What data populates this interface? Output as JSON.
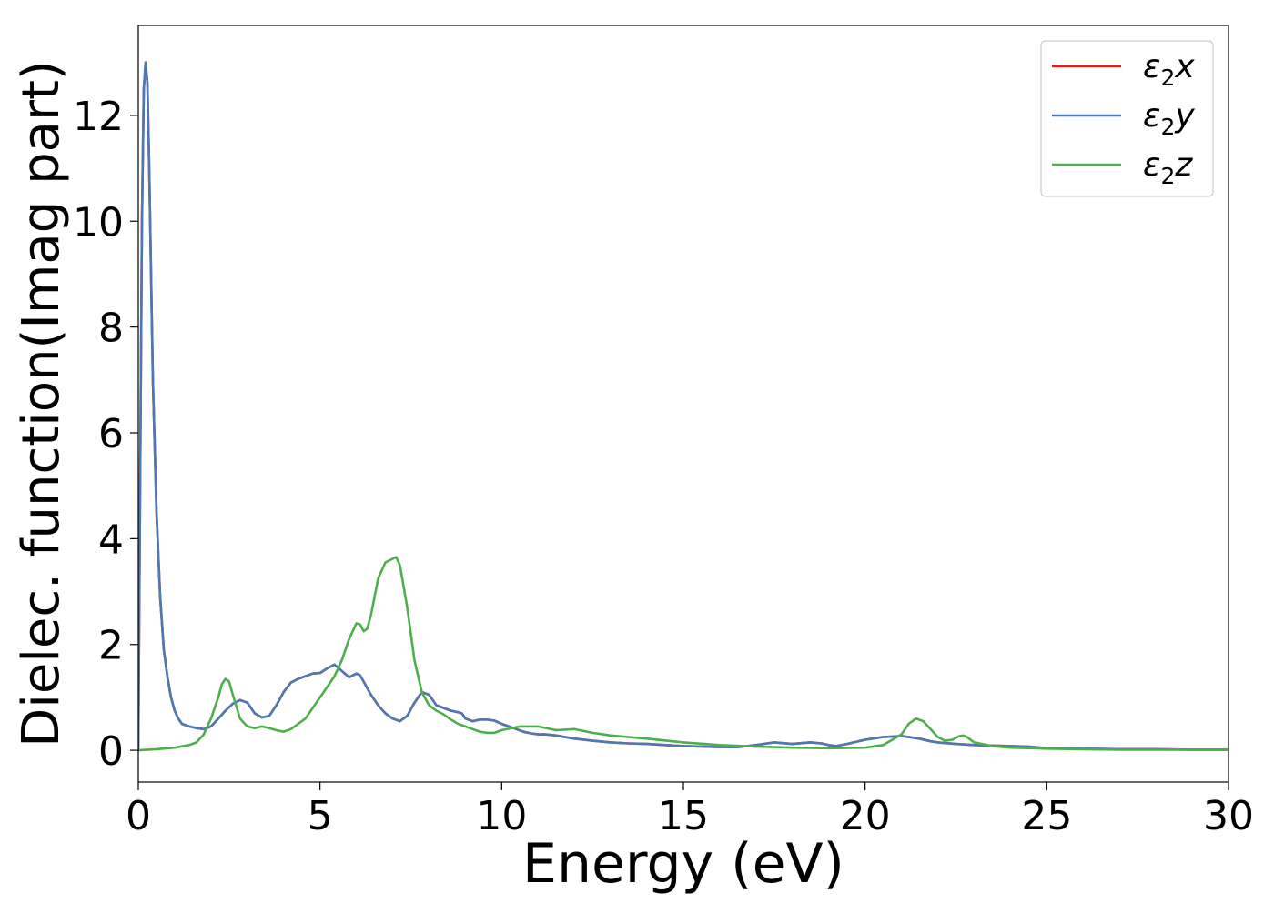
{
  "chart_data": {
    "type": "line",
    "title": "",
    "xlabel": "Energy (eV)",
    "ylabel": "Dielec. function(Imag part)",
    "xlim": [
      0,
      30
    ],
    "ylim": [
      -0.6,
      13.7
    ],
    "xticks": [
      0,
      5,
      10,
      15,
      20,
      25,
      30
    ],
    "yticks": [
      0,
      2,
      4,
      6,
      8,
      10,
      12
    ],
    "grid": false,
    "legend_position": "top-right",
    "series": [
      {
        "name": "ε₂x",
        "legend_base": "ε",
        "legend_sub": "2",
        "legend_suffix": "x",
        "color": "#e41a1c",
        "x": [
          0,
          0.05,
          0.1,
          0.15,
          0.2,
          0.25,
          0.3,
          0.35,
          0.4,
          0.5,
          0.6,
          0.7,
          0.8,
          0.9,
          1.0,
          1.1,
          1.2,
          1.4,
          1.6,
          1.8,
          2.0,
          2.2,
          2.4,
          2.6,
          2.8,
          3.0,
          3.1,
          3.2,
          3.4,
          3.6,
          3.8,
          4.0,
          4.2,
          4.4,
          4.6,
          4.8,
          5.0,
          5.2,
          5.4,
          5.6,
          5.8,
          6.0,
          6.1,
          6.2,
          6.4,
          6.6,
          6.8,
          7.0,
          7.2,
          7.4,
          7.6,
          7.8,
          8.0,
          8.2,
          8.4,
          8.6,
          8.8,
          8.9,
          9.0,
          9.2,
          9.4,
          9.6,
          9.8,
          10.0,
          10.2,
          10.4,
          10.6,
          10.8,
          11.0,
          11.2,
          11.5,
          12.0,
          12.5,
          13.0,
          13.5,
          14.0,
          14.5,
          15.0,
          15.5,
          16.0,
          16.5,
          17.0,
          17.5,
          18.0,
          18.5,
          18.8,
          19.0,
          19.2,
          19.5,
          20.0,
          20.5,
          21.0,
          21.5,
          21.8,
          22.0,
          22.5,
          23.0,
          23.5,
          24.0,
          24.5,
          25.0,
          26.0,
          27.0,
          28.0,
          29.0,
          30.0
        ],
        "y": [
          0,
          5.0,
          10.0,
          12.5,
          13.0,
          12.6,
          11.0,
          9.0,
          7.0,
          4.5,
          2.9,
          1.9,
          1.4,
          1.0,
          0.75,
          0.6,
          0.5,
          0.45,
          0.42,
          0.4,
          0.45,
          0.6,
          0.75,
          0.88,
          0.95,
          0.9,
          0.8,
          0.7,
          0.62,
          0.65,
          0.85,
          1.1,
          1.28,
          1.35,
          1.4,
          1.45,
          1.46,
          1.55,
          1.62,
          1.5,
          1.38,
          1.45,
          1.42,
          1.3,
          1.05,
          0.85,
          0.7,
          0.6,
          0.55,
          0.65,
          0.9,
          1.1,
          1.05,
          0.85,
          0.8,
          0.75,
          0.72,
          0.7,
          0.6,
          0.55,
          0.58,
          0.58,
          0.56,
          0.5,
          0.45,
          0.4,
          0.35,
          0.32,
          0.3,
          0.3,
          0.28,
          0.22,
          0.18,
          0.15,
          0.13,
          0.12,
          0.1,
          0.08,
          0.07,
          0.06,
          0.06,
          0.1,
          0.15,
          0.12,
          0.15,
          0.13,
          0.1,
          0.08,
          0.12,
          0.2,
          0.25,
          0.27,
          0.22,
          0.17,
          0.15,
          0.12,
          0.1,
          0.09,
          0.08,
          0.07,
          0.04,
          0.03,
          0.02,
          0.02,
          0.01,
          0.01
        ]
      },
      {
        "name": "ε₂y",
        "legend_base": "ε",
        "legend_sub": "2",
        "legend_suffix": "y",
        "color": "#4a7ab5",
        "x": [
          0,
          0.05,
          0.1,
          0.15,
          0.2,
          0.25,
          0.3,
          0.35,
          0.4,
          0.5,
          0.6,
          0.7,
          0.8,
          0.9,
          1.0,
          1.1,
          1.2,
          1.4,
          1.6,
          1.8,
          2.0,
          2.2,
          2.4,
          2.6,
          2.8,
          3.0,
          3.1,
          3.2,
          3.4,
          3.6,
          3.8,
          4.0,
          4.2,
          4.4,
          4.6,
          4.8,
          5.0,
          5.2,
          5.4,
          5.6,
          5.8,
          6.0,
          6.1,
          6.2,
          6.4,
          6.6,
          6.8,
          7.0,
          7.2,
          7.4,
          7.6,
          7.8,
          8.0,
          8.2,
          8.4,
          8.6,
          8.8,
          8.9,
          9.0,
          9.2,
          9.4,
          9.6,
          9.8,
          10.0,
          10.2,
          10.4,
          10.6,
          10.8,
          11.0,
          11.2,
          11.5,
          12.0,
          12.5,
          13.0,
          13.5,
          14.0,
          14.5,
          15.0,
          15.5,
          16.0,
          16.5,
          17.0,
          17.5,
          18.0,
          18.5,
          18.8,
          19.0,
          19.2,
          19.5,
          20.0,
          20.5,
          21.0,
          21.5,
          21.8,
          22.0,
          22.5,
          23.0,
          23.5,
          24.0,
          24.5,
          25.0,
          26.0,
          27.0,
          28.0,
          29.0,
          30.0
        ],
        "y": [
          0,
          5.0,
          10.0,
          12.5,
          13.0,
          12.6,
          11.0,
          9.0,
          7.0,
          4.5,
          2.9,
          1.9,
          1.4,
          1.0,
          0.75,
          0.6,
          0.5,
          0.45,
          0.42,
          0.4,
          0.45,
          0.6,
          0.75,
          0.88,
          0.95,
          0.9,
          0.8,
          0.7,
          0.62,
          0.65,
          0.85,
          1.1,
          1.28,
          1.35,
          1.4,
          1.45,
          1.46,
          1.55,
          1.62,
          1.5,
          1.38,
          1.45,
          1.42,
          1.3,
          1.05,
          0.85,
          0.7,
          0.6,
          0.55,
          0.65,
          0.9,
          1.1,
          1.05,
          0.85,
          0.8,
          0.75,
          0.72,
          0.7,
          0.6,
          0.55,
          0.58,
          0.58,
          0.56,
          0.5,
          0.45,
          0.4,
          0.35,
          0.32,
          0.3,
          0.3,
          0.28,
          0.22,
          0.18,
          0.15,
          0.13,
          0.12,
          0.1,
          0.08,
          0.07,
          0.06,
          0.06,
          0.1,
          0.15,
          0.12,
          0.15,
          0.13,
          0.1,
          0.08,
          0.12,
          0.2,
          0.25,
          0.27,
          0.22,
          0.17,
          0.15,
          0.12,
          0.1,
          0.09,
          0.08,
          0.07,
          0.04,
          0.03,
          0.02,
          0.02,
          0.01,
          0.01
        ]
      },
      {
        "name": "ε₂z",
        "legend_base": "ε",
        "legend_sub": "2",
        "legend_suffix": "z",
        "color": "#4daf4a",
        "x": [
          0,
          0.5,
          1.0,
          1.4,
          1.6,
          1.8,
          2.0,
          2.2,
          2.3,
          2.4,
          2.5,
          2.6,
          2.8,
          3.0,
          3.2,
          3.4,
          3.6,
          3.8,
          4.0,
          4.2,
          4.4,
          4.6,
          4.8,
          5.0,
          5.2,
          5.4,
          5.6,
          5.8,
          6.0,
          6.1,
          6.2,
          6.3,
          6.4,
          6.5,
          6.6,
          6.8,
          7.0,
          7.1,
          7.2,
          7.4,
          7.6,
          7.8,
          8.0,
          8.2,
          8.4,
          8.6,
          8.8,
          9.0,
          9.2,
          9.4,
          9.6,
          9.8,
          10.0,
          10.5,
          11.0,
          11.5,
          12.0,
          12.5,
          13.0,
          14.0,
          15.0,
          16.0,
          17.0,
          18.0,
          19.0,
          20.0,
          20.5,
          21.0,
          21.2,
          21.4,
          21.6,
          21.8,
          22.0,
          22.2,
          22.4,
          22.6,
          22.7,
          22.8,
          23.0,
          23.5,
          24.0,
          25.0,
          26.0,
          27.0,
          28.0,
          29.0,
          30.0
        ],
        "y": [
          0,
          0.02,
          0.05,
          0.1,
          0.15,
          0.3,
          0.6,
          1.0,
          1.25,
          1.35,
          1.3,
          1.05,
          0.6,
          0.45,
          0.42,
          0.45,
          0.42,
          0.38,
          0.35,
          0.4,
          0.5,
          0.6,
          0.8,
          1.0,
          1.2,
          1.4,
          1.7,
          2.1,
          2.4,
          2.38,
          2.25,
          2.3,
          2.55,
          2.9,
          3.25,
          3.55,
          3.62,
          3.65,
          3.5,
          2.7,
          1.7,
          1.1,
          0.85,
          0.75,
          0.68,
          0.58,
          0.5,
          0.45,
          0.4,
          0.35,
          0.33,
          0.33,
          0.38,
          0.45,
          0.45,
          0.38,
          0.4,
          0.33,
          0.28,
          0.22,
          0.15,
          0.1,
          0.07,
          0.05,
          0.04,
          0.05,
          0.1,
          0.3,
          0.5,
          0.6,
          0.55,
          0.4,
          0.25,
          0.18,
          0.2,
          0.27,
          0.28,
          0.25,
          0.15,
          0.08,
          0.05,
          0.03,
          0.02,
          0.01,
          0.01,
          0.01,
          0.01
        ]
      }
    ]
  }
}
